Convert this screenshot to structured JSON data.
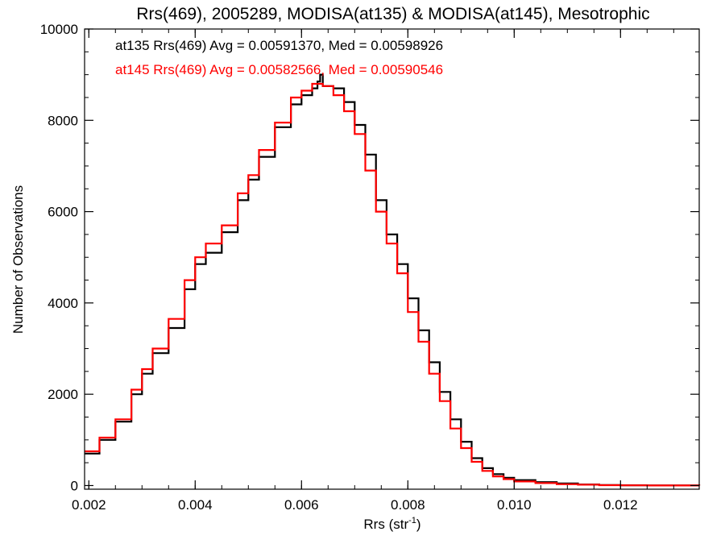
{
  "chart_data": {
    "type": "line",
    "title": "Rrs(469), 2005289, MODISA(at135) & MODISA(at145), Mesotrophic",
    "xlabel": "Rrs (str",
    "xlabel_sup": "-1",
    "xlabel_suffix": ")",
    "ylabel": "Number of Observations",
    "xlim": [
      0.00192,
      0.01348
    ],
    "ylim": [
      -80,
      10000
    ],
    "xticks": [
      "0.002",
      "0.004",
      "0.006",
      "0.008",
      "0.010",
      "0.012"
    ],
    "xtick_values": [
      0.002,
      0.004,
      0.006,
      0.008,
      0.01,
      0.012
    ],
    "yticks": [
      "0",
      "2000",
      "4000",
      "6000",
      "8000",
      "10000"
    ],
    "ytick_values": [
      0,
      2000,
      4000,
      6000,
      8000,
      10000
    ],
    "annotations": [
      {
        "text": "at135 Rrs(469) Avg = 0.00591370, Med = 0.00598926",
        "color": "#000000"
      },
      {
        "text": "at145 Rrs(469) Avg = 0.00582566, Med = 0.00590546",
        "color": "#ff0000"
      }
    ],
    "series": [
      {
        "color": "#000000",
        "x": [
          0.00192,
          0.0022,
          0.0025,
          0.0028,
          0.003,
          0.0032,
          0.0035,
          0.0038,
          0.004,
          0.0042,
          0.0045,
          0.0048,
          0.005,
          0.0052,
          0.0055,
          0.0058,
          0.006,
          0.0062,
          0.0063,
          0.00635,
          0.0064,
          0.0066,
          0.0068,
          0.007,
          0.0072,
          0.0074,
          0.0076,
          0.0078,
          0.008,
          0.0082,
          0.0084,
          0.0086,
          0.0088,
          0.009,
          0.0092,
          0.0094,
          0.0096,
          0.0098,
          0.01,
          0.0104,
          0.0108,
          0.0112,
          0.0116,
          0.012,
          0.0125,
          0.013,
          0.01348
        ],
        "y": [
          700,
          1000,
          1400,
          2000,
          2450,
          2900,
          3450,
          4300,
          4850,
          5100,
          5550,
          6250,
          6700,
          7200,
          7850,
          8350,
          8550,
          8700,
          8850,
          9000,
          8750,
          8700,
          8400,
          7900,
          7250,
          6250,
          5500,
          4850,
          4100,
          3400,
          2700,
          2050,
          1450,
          960,
          600,
          380,
          250,
          170,
          120,
          75,
          45,
          25,
          12,
          6,
          2,
          1,
          0
        ]
      },
      {
        "color": "#ff0000",
        "x": [
          0.00192,
          0.0022,
          0.0025,
          0.0028,
          0.003,
          0.0032,
          0.0035,
          0.0038,
          0.004,
          0.0042,
          0.0045,
          0.0048,
          0.005,
          0.0052,
          0.0055,
          0.0058,
          0.006,
          0.0062,
          0.0063,
          0.0064,
          0.0066,
          0.0068,
          0.007,
          0.0072,
          0.0074,
          0.0076,
          0.0078,
          0.008,
          0.0082,
          0.0084,
          0.0086,
          0.0088,
          0.009,
          0.0092,
          0.0094,
          0.0096,
          0.0098,
          0.01,
          0.0104,
          0.0108,
          0.0112,
          0.0116,
          0.012,
          0.0125,
          0.013,
          0.01348
        ],
        "y": [
          750,
          1050,
          1450,
          2100,
          2550,
          3000,
          3650,
          4500,
          5000,
          5300,
          5700,
          6400,
          6800,
          7350,
          7950,
          8500,
          8650,
          8800,
          8800,
          8750,
          8550,
          8200,
          7700,
          6900,
          6000,
          5300,
          4650,
          3800,
          3150,
          2450,
          1850,
          1250,
          820,
          520,
          320,
          200,
          140,
          90,
          55,
          30,
          18,
          9,
          4,
          2,
          1,
          0
        ]
      }
    ]
  }
}
